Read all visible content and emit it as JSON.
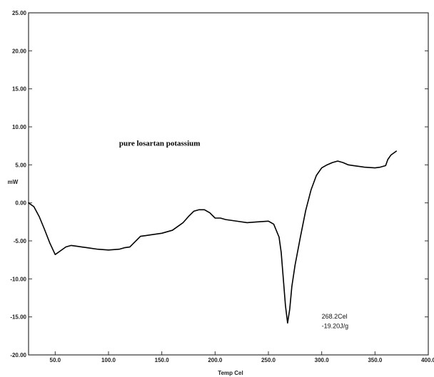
{
  "chart_data": {
    "type": "line",
    "title": "",
    "xlabel": "Temp Cel",
    "ylabel": "mW",
    "xlim": [
      25,
      400
    ],
    "ylim": [
      -20,
      25
    ],
    "x_ticks": [
      50,
      100,
      150,
      200,
      250,
      300,
      350,
      400
    ],
    "x_tick_labels": [
      "50.0",
      "100.0",
      "150.0",
      "200.0",
      "250.0",
      "300.0",
      "350.0",
      "400.0"
    ],
    "y_ticks": [
      25,
      20,
      15,
      10,
      5,
      0,
      -5,
      -10,
      -15,
      -20
    ],
    "y_tick_labels": [
      "25.00",
      "20.00",
      "15.00",
      "10.00",
      "5.00",
      "0.00",
      "-5.00",
      "-10.00",
      "-15.00",
      "-20.00"
    ],
    "grid": false,
    "line_color": "#000000",
    "annotations": [
      {
        "text": "pure losartan potassium",
        "x": 110,
        "y": 7.5
      },
      {
        "text": "268.2Cel",
        "x": 300,
        "y": -15.2
      },
      {
        "text": "-19.20J/g",
        "x": 300,
        "y": -16.5
      }
    ],
    "series": [
      {
        "x": [
          25,
          30,
          35,
          40,
          45,
          50,
          55,
          60,
          65,
          70,
          75,
          80,
          90,
          100,
          110,
          115,
          120,
          125,
          130,
          135,
          140,
          150,
          160,
          170,
          175,
          180,
          185,
          190,
          195,
          200,
          205,
          210,
          220,
          230,
          240,
          250,
          255,
          260,
          262,
          264,
          266,
          268,
          270,
          272,
          275,
          280,
          285,
          290,
          295,
          300,
          305,
          310,
          315,
          320,
          325,
          330,
          340,
          350,
          355,
          360,
          362,
          365,
          370
        ],
        "y": [
          0,
          -0.5,
          -1.8,
          -3.5,
          -5.3,
          -6.8,
          -6.3,
          -5.8,
          -5.6,
          -5.7,
          -5.8,
          -5.9,
          -6.1,
          -6.2,
          -6.1,
          -5.9,
          -5.8,
          -5.1,
          -4.4,
          -4.3,
          -4.2,
          -4.0,
          -3.6,
          -2.6,
          -1.8,
          -1.1,
          -0.9,
          -0.9,
          -1.3,
          -2.0,
          -2.0,
          -2.2,
          -2.4,
          -2.6,
          -2.5,
          -2.4,
          -2.8,
          -4.5,
          -6.5,
          -10.0,
          -13.5,
          -15.8,
          -14.0,
          -11.0,
          -8.2,
          -4.5,
          -1.0,
          1.7,
          3.6,
          4.6,
          5.0,
          5.3,
          5.5,
          5.3,
          5.0,
          4.9,
          4.7,
          4.6,
          4.7,
          4.9,
          5.7,
          6.3,
          6.8
        ]
      }
    ]
  }
}
